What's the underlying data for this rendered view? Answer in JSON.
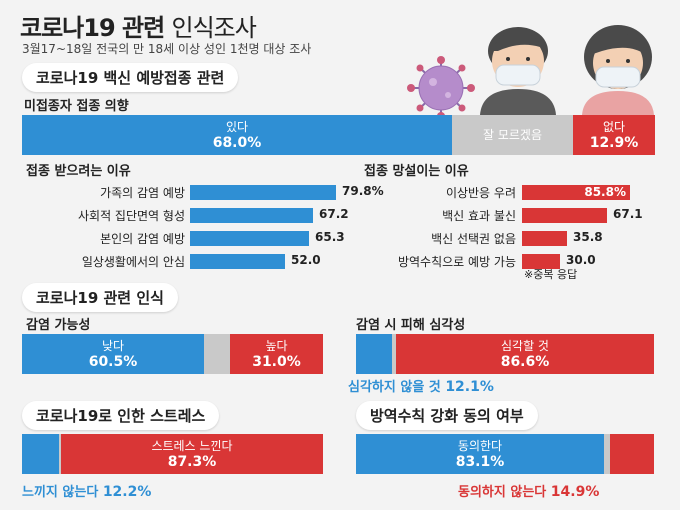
{
  "header": {
    "title_bold": "코로나19 관련",
    "title_light": "인식조사",
    "subtitle": "3월17~18일 전국의 만 18세 이상 성인 1천명 대상 조사"
  },
  "vaccine_section": {
    "heading": "코로나19 백신 예방접종 관련",
    "intent_heading": "미접종자 접종 의향"
  },
  "perception_section": {
    "heading": "코로나19 관련 인식"
  },
  "stress_section": {
    "heading": "코로나19로 인한 스트레스"
  },
  "quarantine_section": {
    "heading": "방역수칙 강화 동의 여부"
  },
  "footnote": "※중복 응답",
  "colors": {
    "blue": "#2f8fd4",
    "red": "#d93636",
    "gray": "#c9c9c9"
  },
  "chart_data": [
    {
      "type": "bar",
      "stacked": true,
      "title": "미접종자 접종 의향",
      "segments": [
        {
          "label": "있다",
          "value": 68.0,
          "display": "68.0%"
        },
        {
          "label": "잘 모르겠음",
          "value": 19.1,
          "display": ""
        },
        {
          "label": "없다",
          "value": 12.9,
          "display": "12.9%"
        }
      ]
    },
    {
      "type": "bar",
      "orientation": "horizontal",
      "title": "접종 받으려는 이유",
      "categories": [
        "가족의 감염 예방",
        "사회적 집단면역 형성",
        "본인의 감염 예방",
        "일상생활에서의 안심"
      ],
      "values": [
        79.8,
        67.2,
        65.3,
        52.0
      ],
      "display": [
        "79.8%",
        "67.2",
        "65.3",
        "52.0"
      ]
    },
    {
      "type": "bar",
      "orientation": "horizontal",
      "title": "접종 망설이는 이유",
      "categories": [
        "이상반응 우려",
        "백신 효과 불신",
        "백신 선택권 없음",
        "방역수칙으로 예방 가능"
      ],
      "values": [
        85.8,
        67.1,
        35.8,
        30.0
      ],
      "display": [
        "85.8%",
        "67.1",
        "35.8",
        "30.0"
      ]
    },
    {
      "type": "bar",
      "stacked": true,
      "title": "감염 가능성",
      "segments": [
        {
          "label": "낮다",
          "value": 60.5,
          "display": "60.5%"
        },
        {
          "label": "",
          "value": 8.5,
          "display": ""
        },
        {
          "label": "높다",
          "value": 31.0,
          "display": "31.0%"
        }
      ]
    },
    {
      "type": "bar",
      "stacked": true,
      "title": "감염 시 피해 심각성",
      "segments": [
        {
          "label": "심각하지 않을 것",
          "value": 12.1,
          "display": "12.1%"
        },
        {
          "label": "",
          "value": 1.3,
          "display": ""
        },
        {
          "label": "심각할 것",
          "value": 86.6,
          "display": "86.6%"
        }
      ]
    },
    {
      "type": "bar",
      "stacked": true,
      "title": "코로나19로 인한 스트레스",
      "segments": [
        {
          "label": "느끼지 않는다",
          "value": 12.2,
          "display": "12.2%"
        },
        {
          "label": "",
          "value": 0.5,
          "display": ""
        },
        {
          "label": "스트레스 느낀다",
          "value": 87.3,
          "display": "87.3%"
        }
      ]
    },
    {
      "type": "bar",
      "stacked": true,
      "title": "방역수칙 강화 동의 여부",
      "segments": [
        {
          "label": "동의한다",
          "value": 83.1,
          "display": "83.1%"
        },
        {
          "label": "",
          "value": 2.0,
          "display": ""
        },
        {
          "label": "동의하지 않는다",
          "value": 14.9,
          "display": "14.9%"
        }
      ]
    }
  ]
}
